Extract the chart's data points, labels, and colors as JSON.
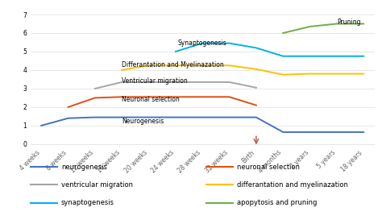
{
  "x_labels": [
    "4 weeks",
    "8 weeks",
    "12 weeks",
    "16 weeks",
    "20 weeks",
    "24 weeks",
    "28 weeks",
    "32 weeks",
    "Birth",
    "4 months",
    "2 years",
    "5 years",
    "18 years"
  ],
  "birth_index": 8,
  "yticks": [
    0,
    1,
    2,
    3,
    4,
    5,
    6,
    7
  ],
  "lines": {
    "neurogenesis": {
      "color": "#4472C4",
      "values": [
        1.0,
        1.4,
        1.45,
        1.45,
        1.45,
        1.45,
        1.45,
        1.45,
        1.45,
        0.65,
        0.65,
        0.65,
        0.65
      ]
    },
    "neuronal_selection": {
      "color": "#E05010",
      "values": [
        null,
        2.0,
        2.5,
        2.55,
        2.55,
        2.55,
        2.55,
        2.55,
        2.1,
        null,
        null,
        null,
        null
      ]
    },
    "ventricular_migration": {
      "color": "#A5A5A5",
      "values": [
        null,
        null,
        3.0,
        3.35,
        3.35,
        3.35,
        3.35,
        3.35,
        3.05,
        null,
        null,
        null,
        null
      ]
    },
    "differentiation": {
      "color": "#FFC000",
      "values": [
        null,
        null,
        null,
        4.0,
        4.25,
        4.25,
        4.25,
        4.25,
        4.05,
        3.75,
        3.8,
        3.8,
        3.8
      ]
    },
    "synaptogenesis": {
      "color": "#00B0F0",
      "values": [
        null,
        null,
        null,
        null,
        null,
        5.0,
        5.45,
        5.45,
        5.2,
        4.75,
        4.75,
        4.75,
        4.75
      ]
    },
    "pruning": {
      "color": "#70AD47",
      "values": [
        null,
        null,
        null,
        null,
        null,
        null,
        null,
        null,
        null,
        6.0,
        6.35,
        6.5,
        6.5
      ]
    }
  },
  "annotations": [
    {
      "key": "neurogenesis",
      "text": "Neurogenesis",
      "xi": 3,
      "yi": 1.05,
      "ha": "left"
    },
    {
      "key": "neuronal_selection",
      "text": "Neuronal selection",
      "xi": 3,
      "yi": 2.2,
      "ha": "left"
    },
    {
      "key": "ventricular_migration",
      "text": "Ventricular migration",
      "xi": 3,
      "yi": 3.2,
      "ha": "left"
    },
    {
      "key": "differentiation",
      "text": "Differantation and Myelinazation",
      "xi": 3,
      "yi": 4.1,
      "ha": "left"
    },
    {
      "key": "synaptogenesis",
      "text": "Synaptogenesis",
      "xi": 6,
      "yi": 5.25,
      "ha": "center"
    },
    {
      "key": "pruning",
      "text": "Pruning",
      "xi": 11,
      "yi": 6.4,
      "ha": "left"
    }
  ],
  "legend_items_col1": [
    {
      "label": "neurogenesis",
      "color": "#4472C4"
    },
    {
      "label": "ventricular migration",
      "color": "#A5A5A5"
    },
    {
      "label": "synaptogenesis",
      "color": "#00B0F0"
    }
  ],
  "legend_items_col2": [
    {
      "label": "neuronal selection",
      "color": "#E05010"
    },
    {
      "label": "differantation and myelinazation",
      "color": "#FFC000"
    },
    {
      "label": "apopytosis and pruning",
      "color": "#70AD47"
    }
  ],
  "arrow_color": "#C05040",
  "background_color": "#FFFFFF",
  "grid_color": "#DDDDDD",
  "tick_fontsize": 5.5,
  "ann_fontsize": 5.5,
  "legend_fontsize": 6.0
}
